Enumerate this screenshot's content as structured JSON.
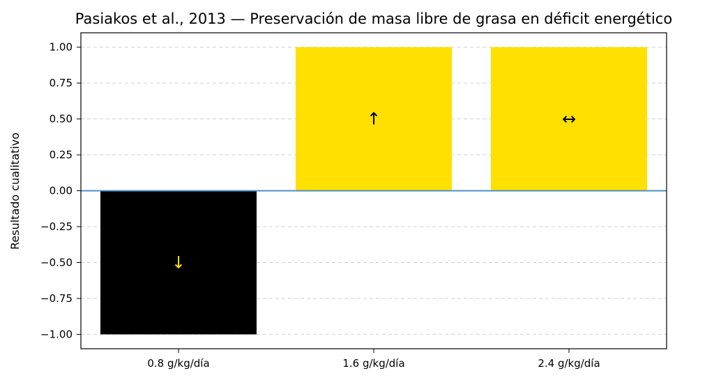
{
  "chart_data": {
    "type": "bar",
    "title": "Pasiakos et al., 2013 — Preservación de masa libre de grasa en déficit energético",
    "xlabel": "",
    "ylabel": "Resultado cualitativo",
    "categories": [
      "0.8 g/kg/día",
      "1.6 g/kg/día",
      "2.4 g/kg/día"
    ],
    "values": [
      -1.0,
      1.0,
      1.0
    ],
    "bar_labels": [
      "↓",
      "↑",
      "↔"
    ],
    "bar_colors": [
      "#000000",
      "#ffe000",
      "#ffe000"
    ],
    "label_colors": [
      "#ffe000",
      "#000000",
      "#000000"
    ],
    "ylim": [
      -1.1,
      1.1
    ],
    "yticks": [
      -1.0,
      -0.75,
      -0.5,
      -0.25,
      0.0,
      0.25,
      0.5,
      0.75,
      1.0
    ],
    "ytick_labels": [
      "−1.00",
      "−0.75",
      "−0.50",
      "−0.25",
      "0.00",
      "0.25",
      "0.50",
      "0.75",
      "1.00"
    ],
    "grid": "y-dashed",
    "zero_line_color": "#4f8fc6",
    "legend": "none"
  }
}
